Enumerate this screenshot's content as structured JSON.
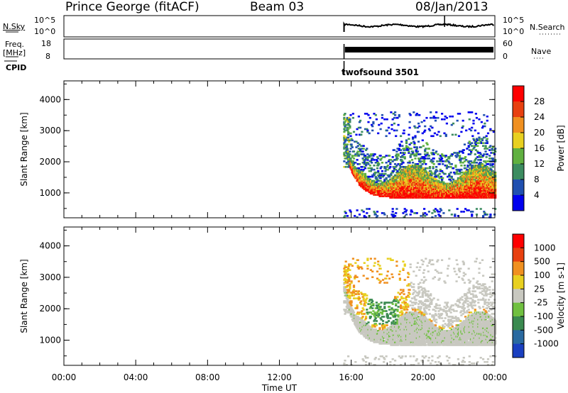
{
  "header": {
    "radar": "Prince George (fitACF)",
    "beam": "Beam 03",
    "date": "08/Jan/2013"
  },
  "sky_panel": {
    "left_label": "N.Sky",
    "right_label": "N.Search",
    "left_ticks": [
      "10^5",
      "10^0"
    ],
    "right_ticks": [
      "10^5",
      "10^0"
    ]
  },
  "freq_panel": {
    "left_label_1": "Freq.",
    "left_label_2": "[MHz]",
    "right_label": "Nave",
    "left_ticks": [
      "18",
      "8"
    ],
    "right_ticks": [
      "60",
      "0"
    ]
  },
  "cpid": {
    "label": "CPID",
    "program": "twofsound 3501"
  },
  "chart_data": [
    {
      "type": "heatmap",
      "ylabel": "Slant Range [km]",
      "xlabel": "Time UT",
      "x_range": [
        "00:00",
        "24:00"
      ],
      "ylim": [
        200,
        4600
      ],
      "yticks": [
        "4000",
        "3000",
        "2000",
        "1000"
      ],
      "colorbar": {
        "label": "Power [dB]",
        "ticks": [
          "28",
          "24",
          "20",
          "16",
          "12",
          "8",
          "4"
        ],
        "colors": [
          "#0000ee",
          "#2050b0",
          "#3c8c60",
          "#60b040",
          "#e8d020",
          "#f09020",
          "#e84010",
          "#ff0000"
        ]
      }
    },
    {
      "type": "heatmap",
      "ylabel": "Slant Range [km]",
      "xlabel": "Time UT",
      "x_range": [
        "00:00",
        "24:00"
      ],
      "ylim": [
        200,
        4600
      ],
      "yticks": [
        "4000",
        "3000",
        "2000",
        "1000"
      ],
      "colorbar": {
        "label": "Velocity [m s-1]",
        "ticks": [
          "1000",
          "500",
          "100",
          "25",
          "-25",
          "-100",
          "-500",
          "-1000"
        ],
        "colors": [
          "#1a40c0",
          "#2a6aa0",
          "#3a8a50",
          "#70c040",
          "#c8c8c0",
          "#e8d020",
          "#f09020",
          "#e84010",
          "#ff0000"
        ]
      }
    }
  ],
  "x_axis": {
    "ticks": [
      "00:00",
      "04:00",
      "08:00",
      "12:00",
      "16:00",
      "20:00",
      "00:00"
    ],
    "label": "Time UT"
  }
}
